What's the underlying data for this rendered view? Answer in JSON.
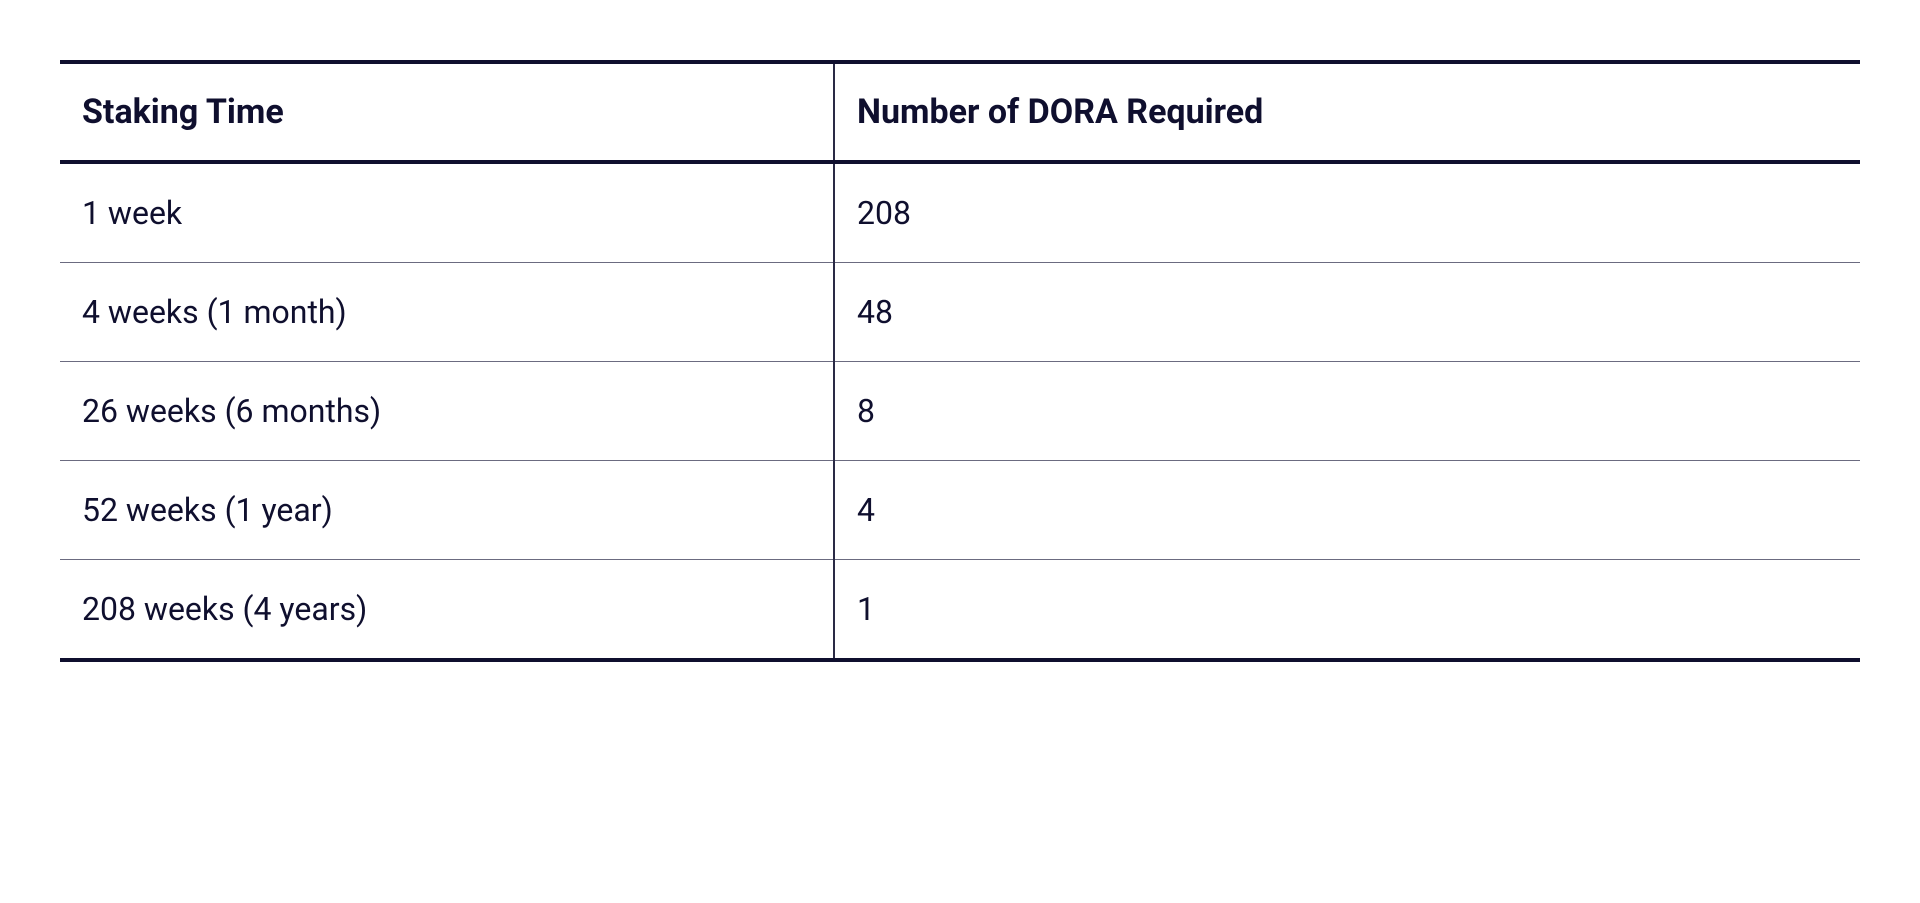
{
  "table": {
    "type": "table",
    "columns": [
      "Staking Time",
      "Number of DORA Required"
    ],
    "rows": [
      [
        "1 week",
        "208"
      ],
      [
        "4 weeks (1 month)",
        "48"
      ],
      [
        "26 weeks (6 months)",
        "8"
      ],
      [
        "52 weeks (1 year)",
        "4"
      ],
      [
        "208 weeks (4 years)",
        "1"
      ]
    ],
    "styling": {
      "background_color": "#ffffff",
      "text_color": "#0f0f2e",
      "border_color_thick": "#0f0f2e",
      "border_color_thin": "#6b6b80",
      "column_divider_color": "#2a2a45",
      "header_fontsize": 34,
      "header_fontweight": 700,
      "cell_fontsize": 32,
      "cell_fontweight": 400,
      "top_border_width": 4,
      "header_border_width": 4,
      "row_border_width": 1,
      "bottom_border_width": 4,
      "column_divider_width": 2,
      "col0_width_pct": 43,
      "cell_padding_v": 30,
      "cell_padding_h": 22,
      "font_family": "-apple-system, BlinkMacSystemFont, Segoe UI, Roboto, Helvetica Neue, Arial, sans-serif"
    }
  }
}
